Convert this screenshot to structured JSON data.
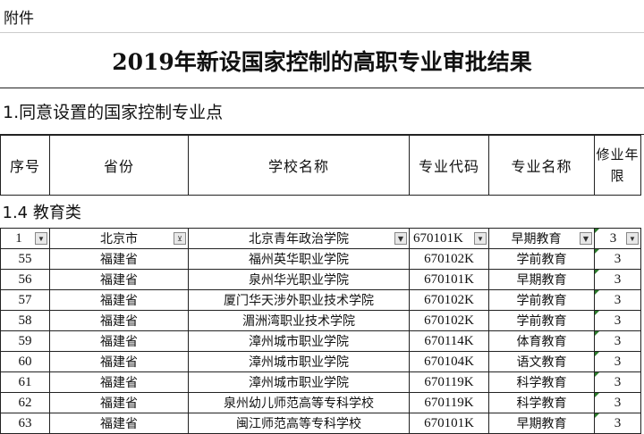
{
  "attachment": "附件",
  "title": "2019年新设国家控制的高职专业审批结果",
  "section": "1.同意设置的国家控制专业点",
  "headers": [
    "序号",
    "省份",
    "学校名称",
    "专业代码",
    "专业名称",
    "修业年限"
  ],
  "category": "1.4 教育类",
  "filter_row": {
    "seq": "1",
    "province": "北京市",
    "school": "北京青年政治学院",
    "code": "670101K",
    "major": "早期教育",
    "years": "3"
  },
  "rows": [
    [
      "55",
      "福建省",
      "福州英华职业学院",
      "670102K",
      "学前教育",
      "3"
    ],
    [
      "56",
      "福建省",
      "泉州华光职业学院",
      "670101K",
      "早期教育",
      "3"
    ],
    [
      "57",
      "福建省",
      "厦门华天涉外职业技术学院",
      "670102K",
      "学前教育",
      "3"
    ],
    [
      "58",
      "福建省",
      "湄洲湾职业技术学院",
      "670102K",
      "学前教育",
      "3"
    ],
    [
      "59",
      "福建省",
      "漳州城市职业学院",
      "670114K",
      "体育教育",
      "3"
    ],
    [
      "60",
      "福建省",
      "漳州城市职业学院",
      "670104K",
      "语文教育",
      "3"
    ],
    [
      "61",
      "福建省",
      "漳州城市职业学院",
      "670119K",
      "科学教育",
      "3"
    ],
    [
      "62",
      "福建省",
      "泉州幼儿师范高等专科学校",
      "670119K",
      "科学教育",
      "3"
    ],
    [
      "63",
      "福建省",
      "闽江师范高等专科学校",
      "670101K",
      "早期教育",
      "3"
    ]
  ]
}
